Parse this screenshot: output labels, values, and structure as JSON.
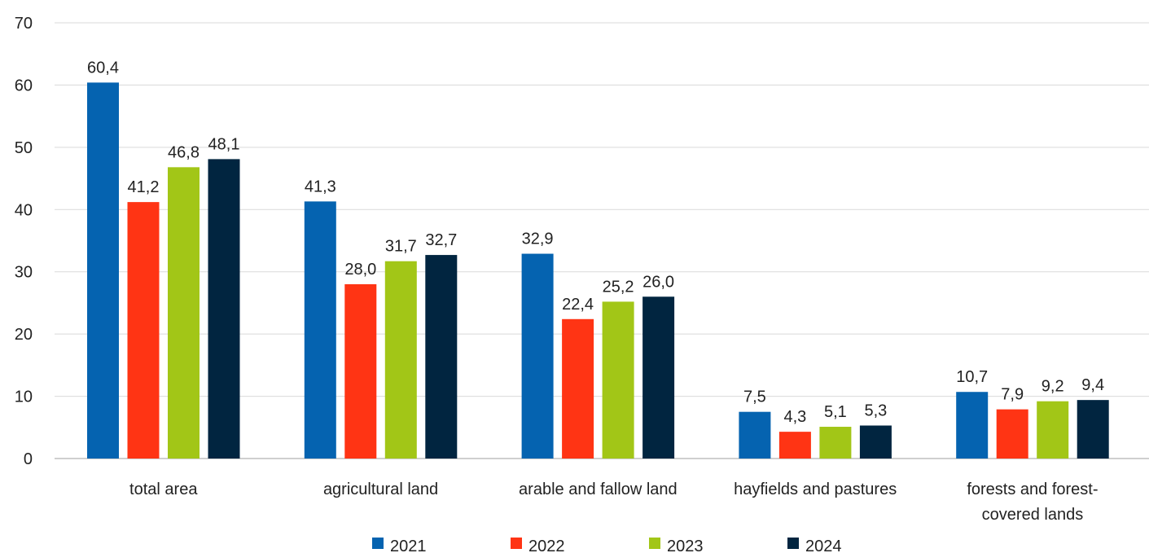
{
  "chart_data": {
    "type": "bar",
    "categories": [
      [
        "total area"
      ],
      [
        "agricultural land"
      ],
      [
        "arable and fallow land"
      ],
      [
        "hayfields and pastures"
      ],
      [
        "forests and forest-",
        "covered lands"
      ]
    ],
    "series": [
      {
        "name": "2021",
        "color": "#0563b0",
        "values": [
          60.4,
          41.3,
          32.9,
          7.5,
          10.7
        ],
        "labels": [
          "60,4",
          "41,3",
          "32,9",
          "7,5",
          "10,7"
        ]
      },
      {
        "name": "2022",
        "color": "#ff3414",
        "values": [
          41.2,
          28.0,
          22.4,
          4.3,
          7.9
        ],
        "labels": [
          "41,2",
          "28,0",
          "22,4",
          "4,3",
          "7,9"
        ]
      },
      {
        "name": "2023",
        "color": "#a2c617",
        "values": [
          46.8,
          31.7,
          25.2,
          5.1,
          9.2
        ],
        "labels": [
          "46,8",
          "31,7",
          "25,2",
          "5,1",
          "9,2"
        ]
      },
      {
        "name": "2024",
        "color": "#012540",
        "values": [
          48.1,
          32.7,
          26.0,
          5.3,
          9.4
        ],
        "labels": [
          "48,1",
          "32,7",
          "26,0",
          "5,3",
          "9,4"
        ]
      }
    ],
    "yticks": [
      "0",
      "10",
      "20",
      "30",
      "40",
      "50",
      "60",
      "70"
    ],
    "ylim": [
      0,
      70
    ],
    "grid": true,
    "legend_position": "bottom"
  }
}
